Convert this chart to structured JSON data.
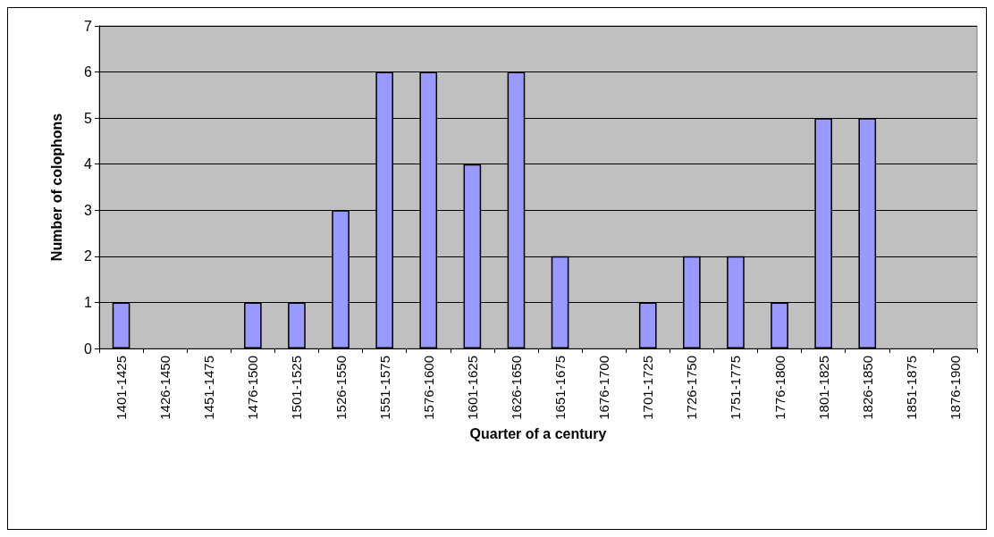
{
  "chart_data": {
    "type": "bar",
    "xlabel": "Quarter of a century",
    "ylabel": "Number of colophons",
    "categories": [
      "1401-1425",
      "1426-1450",
      "1451-1475",
      "1476-1500",
      "1501-1525",
      "1526-1550",
      "1551-1575",
      "1576-1600",
      "1601-1625",
      "1626-1650",
      "1651-1675",
      "1676-1700",
      "1701-1725",
      "1726-1750",
      "1751-1775",
      "1776-1800",
      "1801-1825",
      "1826-1850",
      "1851-1875",
      "1876-1900"
    ],
    "values": [
      1,
      0,
      0,
      1,
      1,
      3,
      6,
      6,
      4,
      6,
      2,
      0,
      1,
      2,
      2,
      1,
      5,
      5,
      0,
      0
    ],
    "color": "#9999ff",
    "ylim": [
      0,
      7
    ],
    "yticks": [
      0,
      1,
      2,
      3,
      4,
      5,
      6,
      7
    ],
    "grid": "y"
  }
}
